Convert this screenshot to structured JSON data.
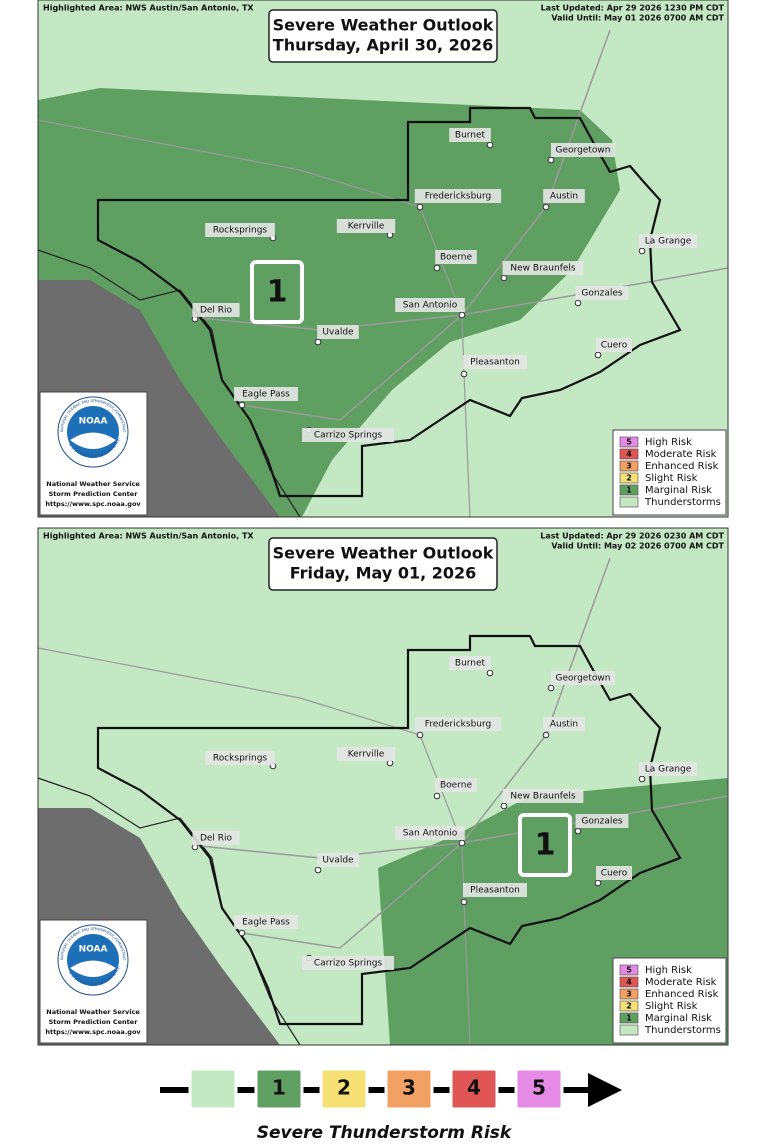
{
  "panels": [
    {
      "highlighted_area": "Highlighted Area: NWS Austin/San Antonio, TX",
      "last_updated": "Last Updated: Apr 29 2026 1230 PM CDT",
      "valid_until": "Valid Until: May 01 2026 0700 AM CDT",
      "title": "Severe Weather Outlook",
      "date": "Thursday, April 30, 2026",
      "risk_label": "1",
      "cities": [
        "Burnet",
        "Georgetown",
        "Fredericksburg",
        "Austin",
        "Rocksprings",
        "Kerrville",
        "La Grange",
        "Boerne",
        "New Braunfels",
        "Gonzales",
        "San Antonio",
        "Del Rio",
        "Uvalde",
        "Cuero",
        "Pleasanton",
        "Eagle Pass",
        "Carrizo Springs"
      ],
      "legend": [
        {
          "number": "5",
          "label": "High Risk"
        },
        {
          "number": "4",
          "label": "Moderate Risk"
        },
        {
          "number": "3",
          "label": "Enhanced Risk"
        },
        {
          "number": "2",
          "label": "Slight Risk"
        },
        {
          "number": "1",
          "label": "Marginal Risk"
        },
        {
          "label": "Thunderstorms"
        }
      ],
      "logo": {
        "emblem": "NOAA",
        "ring_top": "NATIONAL OCEANIC AND ATMOSPHERIC ADMINISTRATION",
        "ring_bottom": "U.S. DEPARTMENT OF COMMERCE",
        "lines": [
          "National Weather Service",
          "Storm Prediction Center",
          "https://www.spc.noaa.gov"
        ]
      }
    },
    {
      "highlighted_area": "Highlighted Area: NWS Austin/San Antonio, TX",
      "last_updated": "Last Updated: Apr 29 2026 0230 AM CDT",
      "valid_until": "Valid Until: May 02 2026 0700 AM CDT",
      "title": "Severe Weather Outlook",
      "date": "Friday, May 01, 2026",
      "risk_label": "1",
      "cities": [
        "Burnet",
        "Georgetown",
        "Fredericksburg",
        "Austin",
        "Rocksprings",
        "Kerrville",
        "La Grange",
        "Boerne",
        "New Braunfels",
        "Gonzales",
        "San Antonio",
        "Del Rio",
        "Uvalde",
        "Cuero",
        "Pleasanton",
        "Eagle Pass",
        "Carrizo Springs"
      ],
      "legend": [
        {
          "number": "5",
          "label": "High Risk"
        },
        {
          "number": "4",
          "label": "Moderate Risk"
        },
        {
          "number": "3",
          "label": "Enhanced Risk"
        },
        {
          "number": "2",
          "label": "Slight Risk"
        },
        {
          "number": "1",
          "label": "Marginal Risk"
        },
        {
          "label": "Thunderstorms"
        }
      ],
      "logo": {
        "emblem": "NOAA",
        "ring_top": "NATIONAL OCEANIC AND ATMOSPHERIC ADMINISTRATION",
        "ring_bottom": "U.S. DEPARTMENT OF COMMERCE",
        "lines": [
          "National Weather Service",
          "Storm Prediction Center",
          "https://www.spc.noaa.gov"
        ]
      }
    }
  ],
  "scale": {
    "levels": [
      "1",
      "2",
      "3",
      "4",
      "5"
    ],
    "caption": "Severe Thunderstorm Risk"
  }
}
